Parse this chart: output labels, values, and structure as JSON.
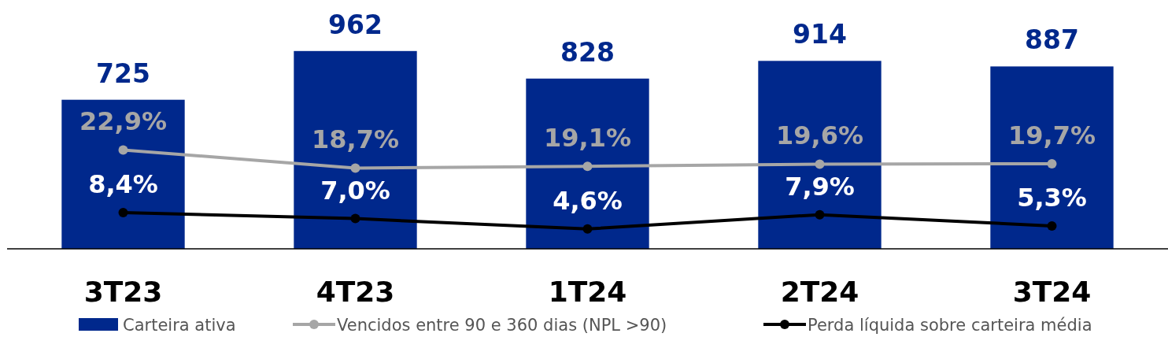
{
  "chart_data": {
    "type": "bar",
    "categories": [
      "3T23",
      "4T23",
      "1T24",
      "2T24",
      "3T24"
    ],
    "data_labels": true,
    "legend": "bottom",
    "marker": "circle",
    "tick_labels": "x",
    "series": [
      {
        "name": "Carteira ativa",
        "color": "#00288c",
        "values": [
          725,
          962,
          828,
          914,
          887
        ]
      },
      {
        "name": "Vencidos entre 90 e 360 dias (NPL >90)",
        "type": "line",
        "axis": "y2",
        "color": "#a6a6a6",
        "values": [
          22.9,
          18.7,
          19.1,
          19.6,
          19.7
        ],
        "value_labels": [
          "22,9%",
          "18,7%",
          "19,1%",
          "19,6%",
          "19,7%"
        ]
      },
      {
        "name": "Perda líquida sobre carteira média",
        "type": "line",
        "axis": "y2",
        "color": "#000000",
        "values": [
          8.4,
          7.0,
          4.6,
          7.9,
          5.3
        ],
        "value_labels": [
          "8,4%",
          "7,0%",
          "4,6%",
          "7,9%",
          "5,3%"
        ]
      }
    ]
  }
}
